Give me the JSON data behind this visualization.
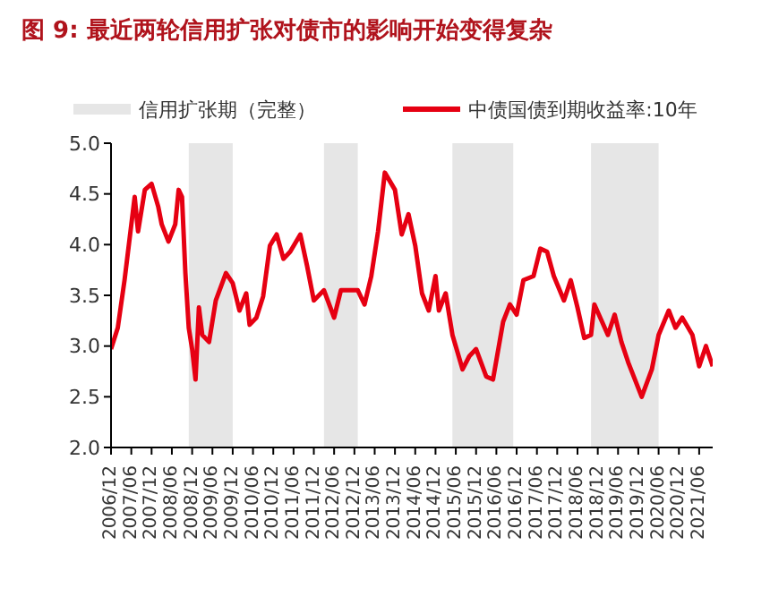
{
  "chart_data": {
    "type": "line",
    "title": "图 9: 最近两轮信用扩张对债市的影响开始变得复杂",
    "x": [
      "2006-12",
      "2007-02",
      "2007-04",
      "2007-07",
      "2007-08",
      "2007-10",
      "2007-12",
      "2008-02",
      "2008-03",
      "2008-05",
      "2008-07",
      "2008-08",
      "2008-09",
      "2008-10",
      "2008-11",
      "2008-12",
      "2009-01",
      "2009-02",
      "2009-03",
      "2009-05",
      "2009-07",
      "2009-10",
      "2009-12",
      "2010-02",
      "2010-04",
      "2010-05",
      "2010-07",
      "2010-09",
      "2010-11",
      "2011-01",
      "2011-03",
      "2011-05",
      "2011-08",
      "2011-10",
      "2011-12",
      "2012-03",
      "2012-06",
      "2012-08",
      "2013-01",
      "2013-03",
      "2013-05",
      "2013-07",
      "2013-09",
      "2013-12",
      "2014-02",
      "2014-04",
      "2014-06",
      "2014-08",
      "2014-10",
      "2014-12",
      "2015-01",
      "2015-03",
      "2015-05",
      "2015-08",
      "2015-10",
      "2015-12",
      "2016-03",
      "2016-05",
      "2016-08",
      "2016-10",
      "2016-12",
      "2017-02",
      "2017-05",
      "2017-07",
      "2017-09",
      "2017-11",
      "2018-02",
      "2018-04",
      "2018-06",
      "2018-08",
      "2018-10",
      "2018-11",
      "2019-03",
      "2019-05",
      "2019-07",
      "2019-09",
      "2020-01",
      "2020-04",
      "2020-06",
      "2020-09",
      "2020-11",
      "2021-01",
      "2021-04",
      "2021-06",
      "2021-08",
      "2021-10"
    ],
    "series": [
      {
        "name": "中债国债到期收益率:10年",
        "color": "#e60012",
        "values": [
          2.97,
          3.18,
          3.65,
          4.47,
          4.13,
          4.54,
          4.6,
          4.37,
          4.2,
          4.03,
          4.2,
          4.54,
          4.47,
          3.72,
          3.18,
          2.97,
          2.67,
          3.38,
          3.11,
          3.04,
          3.45,
          3.72,
          3.62,
          3.35,
          3.52,
          3.21,
          3.28,
          3.49,
          3.99,
          4.1,
          3.86,
          3.93,
          4.1,
          3.79,
          3.45,
          3.55,
          3.28,
          3.55,
          3.55,
          3.41,
          3.69,
          4.13,
          4.71,
          4.54,
          4.1,
          4.3,
          3.99,
          3.52,
          3.35,
          3.69,
          3.35,
          3.52,
          3.11,
          2.77,
          2.9,
          2.97,
          2.7,
          2.67,
          3.24,
          3.41,
          3.31,
          3.65,
          3.69,
          3.96,
          3.93,
          3.69,
          3.45,
          3.65,
          3.38,
          3.08,
          3.11,
          3.41,
          3.11,
          3.31,
          3.04,
          2.84,
          2.5,
          2.77,
          3.11,
          3.35,
          3.18,
          3.28,
          3.11,
          2.8,
          3.0,
          2.8
        ]
      }
    ],
    "xlim": [
      "2006-12",
      "2021-10"
    ],
    "xticks": [
      {
        "value": "2006-12",
        "label": "2006/12"
      },
      {
        "value": "2007-06",
        "label": "2007/06"
      },
      {
        "value": "2007-12",
        "label": "2007/12"
      },
      {
        "value": "2008-06",
        "label": "2008/06"
      },
      {
        "value": "2008-12",
        "label": "2008/12"
      },
      {
        "value": "2009-06",
        "label": "2009/06"
      },
      {
        "value": "2009-12",
        "label": "2009/12"
      },
      {
        "value": "2010-06",
        "label": "2010/06"
      },
      {
        "value": "2010-12",
        "label": "2010/12"
      },
      {
        "value": "2011-06",
        "label": "2011/06"
      },
      {
        "value": "2011-12",
        "label": "2011/12"
      },
      {
        "value": "2012-06",
        "label": "2012/06"
      },
      {
        "value": "2012-12",
        "label": "2012/12"
      },
      {
        "value": "2013-06",
        "label": "2013/06"
      },
      {
        "value": "2013-12",
        "label": "2013/12"
      },
      {
        "value": "2014-06",
        "label": "2014/06"
      },
      {
        "value": "2014-12",
        "label": "2014/12"
      },
      {
        "value": "2015-06",
        "label": "2015/06"
      },
      {
        "value": "2015-12",
        "label": "2015/12"
      },
      {
        "value": "2016-06",
        "label": "2016/06"
      },
      {
        "value": "2016-12",
        "label": "2016/12"
      },
      {
        "value": "2017-06",
        "label": "2017/06"
      },
      {
        "value": "2017-12",
        "label": "2017/12"
      },
      {
        "value": "2018-06",
        "label": "2018/06"
      },
      {
        "value": "2018-12",
        "label": "2018/12"
      },
      {
        "value": "2019-06",
        "label": "2019/06"
      },
      {
        "value": "2019-12",
        "label": "2019/12"
      },
      {
        "value": "2020-06",
        "label": "2020/06"
      },
      {
        "value": "2020-12",
        "label": "2020/12"
      },
      {
        "value": "2021-06",
        "label": "2021/06"
      }
    ],
    "ylim": [
      2,
      5
    ],
    "yticks": [
      {
        "value": 2,
        "label": "2.0"
      },
      {
        "value": 2.5,
        "label": "2.5"
      },
      {
        "value": 3,
        "label": "3.0"
      },
      {
        "value": 3.5,
        "label": "3.5"
      },
      {
        "value": 4,
        "label": "4.0"
      },
      {
        "value": 4.5,
        "label": "4.5"
      },
      {
        "value": 5,
        "label": "5.0"
      }
    ],
    "bands": [
      {
        "axis": "x",
        "from": "2008-11",
        "to": "2009-12",
        "label": "信用扩张期（完整）",
        "color": "#e6e6e6"
      },
      {
        "axis": "x",
        "from": "2012-03",
        "to": "2013-01",
        "color": "#e6e6e6"
      },
      {
        "axis": "x",
        "from": "2015-05",
        "to": "2016-11",
        "color": "#e6e6e6"
      },
      {
        "axis": "x",
        "from": "2018-10",
        "to": "2020-06",
        "color": "#e6e6e6"
      }
    ],
    "legend": "top",
    "marker": "none",
    "line_style": "solid"
  }
}
